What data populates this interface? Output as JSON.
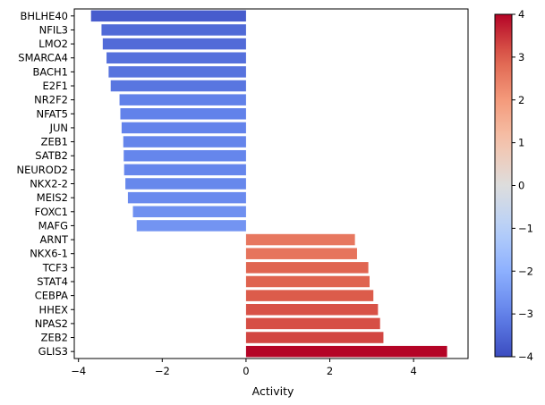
{
  "chart_data": {
    "type": "bar",
    "orientation": "horizontal",
    "categories": [
      "BHLHE40",
      "NFIL3",
      "LMO2",
      "SMARCA4",
      "BACH1",
      "E2F1",
      "NR2F2",
      "NFAT5",
      "JUN",
      "ZEB1",
      "SATB2",
      "NEUROD2",
      "NKX2-2",
      "MEIS2",
      "FOXC1",
      "MAFG",
      "ARNT",
      "NKX6-1",
      "TCF3",
      "STAT4",
      "CEBPA",
      "HHEX",
      "NPAS2",
      "ZEB2",
      "GLIS3"
    ],
    "values": [
      -3.7,
      -3.45,
      -3.42,
      -3.33,
      -3.28,
      -3.23,
      -3.02,
      -3.0,
      -2.97,
      -2.93,
      -2.92,
      -2.91,
      -2.88,
      -2.82,
      -2.7,
      -2.61,
      2.6,
      2.65,
      2.92,
      2.95,
      3.04,
      3.15,
      3.2,
      3.28,
      4.8
    ],
    "xlabel": "Activity",
    "ylabel": "",
    "xlim": [
      -4.1,
      5.3
    ],
    "xticks": [
      "−4",
      "−2",
      "0",
      "2",
      "4"
    ],
    "colorbar": {
      "colormap": "coolwarm",
      "range": [
        -4,
        4
      ],
      "ticks": [
        "4",
        "3",
        "2",
        "1",
        "0",
        "−1",
        "−2",
        "−3",
        "−4"
      ]
    },
    "grid": false,
    "legend": "none"
  }
}
